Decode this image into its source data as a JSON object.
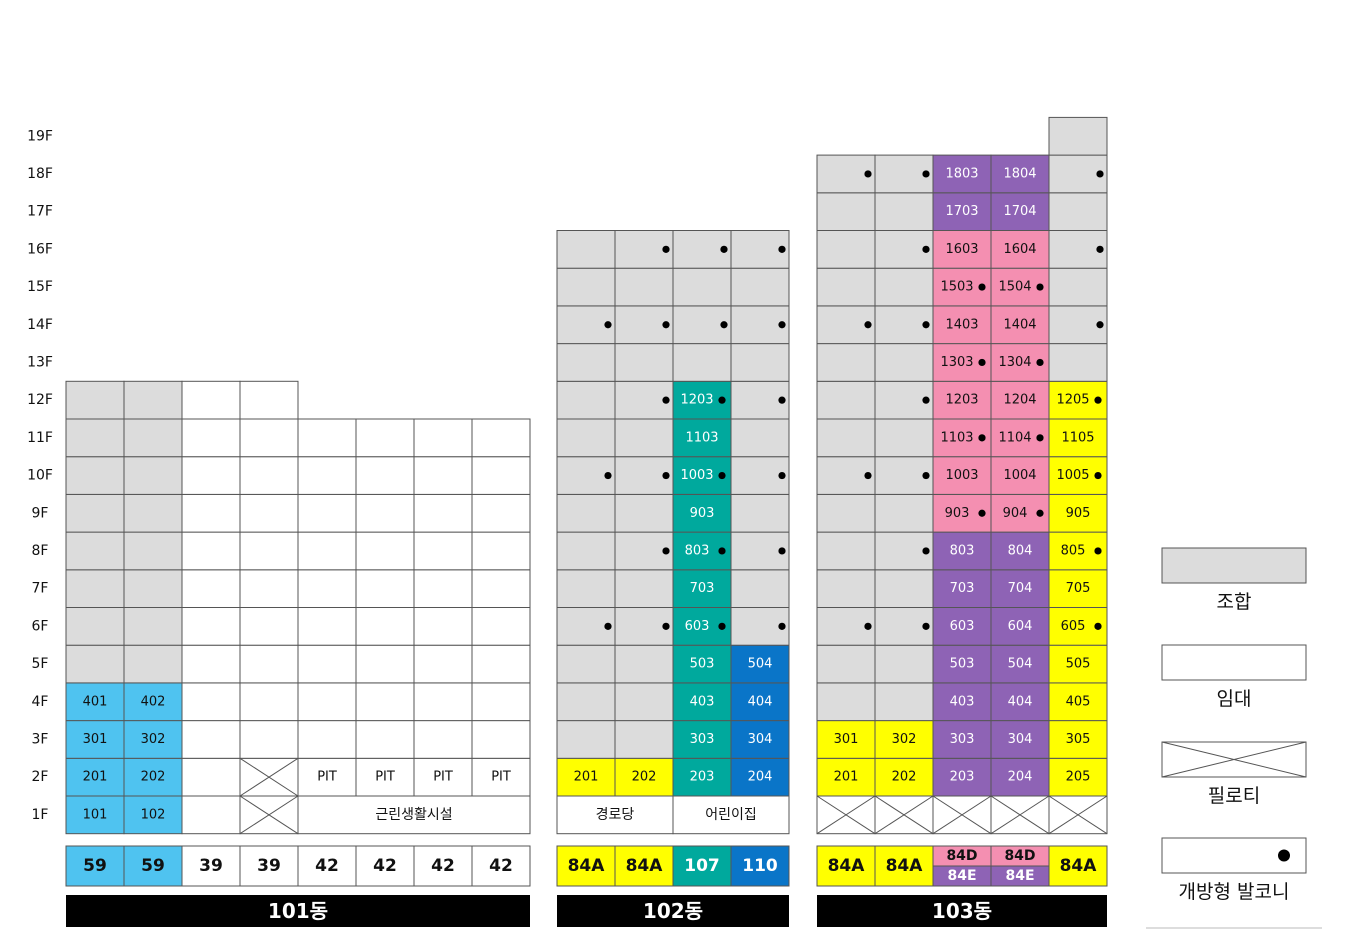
{
  "floors": [
    "1F",
    "2F",
    "3F",
    "4F",
    "5F",
    "6F",
    "7F",
    "8F",
    "9F",
    "10F",
    "11F",
    "12F",
    "13F",
    "14F",
    "15F",
    "16F",
    "17F",
    "18F",
    "19F"
  ],
  "colors": {
    "조합": "#dcdcdc",
    "임대": "#ffffff",
    "blue_light": "#4fc3f0",
    "yellow": "#ffff00",
    "teal": "#00a99d",
    "blue": "#0a75c8",
    "pink": "#f48fb1",
    "purple": "#8e63b5",
    "label_bg": "#000000",
    "grid_line": "#555555"
  },
  "buildings": [
    {
      "name": "101동",
      "type_row": [
        {
          "label": "59",
          "color": "blue_light"
        },
        {
          "label": "59",
          "color": "blue_light"
        },
        {
          "label": "39",
          "color": "임대"
        },
        {
          "label": "39",
          "color": "임대"
        },
        {
          "label": "42",
          "color": "임대"
        },
        {
          "label": "42",
          "color": "임대"
        },
        {
          "label": "42",
          "color": "임대"
        },
        {
          "label": "42",
          "color": "임대"
        }
      ],
      "merged": [
        {
          "floor": 1,
          "col": 4,
          "span": 4,
          "label": "근린생활시설"
        }
      ],
      "columns": [
        {
          "top": 12,
          "cells": {
            "1": {
              "c": "blue_light",
              "t": "101"
            },
            "2": {
              "c": "blue_light",
              "t": "201"
            },
            "3": {
              "c": "blue_light",
              "t": "301"
            },
            "4": {
              "c": "blue_light",
              "t": "401"
            },
            "5": {
              "c": "조합"
            },
            "6": {
              "c": "조합"
            },
            "7": {
              "c": "조합"
            },
            "8": {
              "c": "조합"
            },
            "9": {
              "c": "조합"
            },
            "10": {
              "c": "조합"
            },
            "11": {
              "c": "조합"
            },
            "12": {
              "c": "조합"
            }
          }
        },
        {
          "top": 12,
          "cells": {
            "1": {
              "c": "blue_light",
              "t": "102"
            },
            "2": {
              "c": "blue_light",
              "t": "202"
            },
            "3": {
              "c": "blue_light",
              "t": "302"
            },
            "4": {
              "c": "blue_light",
              "t": "402"
            },
            "5": {
              "c": "조합"
            },
            "6": {
              "c": "조합"
            },
            "7": {
              "c": "조합"
            },
            "8": {
              "c": "조합"
            },
            "9": {
              "c": "조합"
            },
            "10": {
              "c": "조합"
            },
            "11": {
              "c": "조합"
            },
            "12": {
              "c": "조합"
            }
          }
        },
        {
          "top": 12,
          "cells": {}
        },
        {
          "top": 12,
          "cells": {
            "1": {
              "c": "pilotis"
            },
            "2": {
              "c": "pilotis"
            }
          }
        },
        {
          "top": 11,
          "cells": {
            "2": {
              "c": "임대",
              "t": "PIT"
            }
          }
        },
        {
          "top": 11,
          "cells": {
            "2": {
              "c": "임대",
              "t": "PIT"
            }
          }
        },
        {
          "top": 11,
          "cells": {
            "2": {
              "c": "임대",
              "t": "PIT"
            }
          }
        },
        {
          "top": 11,
          "cells": {
            "2": {
              "c": "임대",
              "t": "PIT"
            }
          }
        }
      ]
    },
    {
      "name": "102동",
      "type_row": [
        {
          "label": "84A",
          "color": "yellow"
        },
        {
          "label": "84A",
          "color": "yellow"
        },
        {
          "label": "107",
          "color": "teal"
        },
        {
          "label": "110",
          "color": "blue"
        }
      ],
      "merged": [
        {
          "floor": 1,
          "col": 0,
          "span": 2,
          "label": "경로당"
        },
        {
          "floor": 1,
          "col": 2,
          "span": 2,
          "label": "어린이집"
        }
      ],
      "columns": [
        {
          "top": 16,
          "cells": {
            "2": {
              "c": "yellow",
              "t": "201"
            },
            "3": {
              "c": "조합"
            },
            "4": {
              "c": "조합"
            },
            "5": {
              "c": "조합"
            },
            "6": {
              "c": "조합"
            },
            "7": {
              "c": "조합"
            },
            "8": {
              "c": "조합"
            },
            "9": {
              "c": "조합"
            },
            "10": {
              "c": "조합"
            },
            "11": {
              "c": "조합"
            },
            "12": {
              "c": "조합"
            },
            "13": {
              "c": "조합"
            },
            "14": {
              "c": "조합"
            },
            "15": {
              "c": "조합"
            },
            "16": {
              "c": "조합"
            }
          }
        },
        {
          "top": 16,
          "cells": {
            "2": {
              "c": "yellow",
              "t": "202"
            },
            "3": {
              "c": "조합"
            },
            "4": {
              "c": "조합"
            },
            "5": {
              "c": "조합"
            },
            "6": {
              "c": "조합",
              "d": 1
            },
            "7": {
              "c": "조합"
            },
            "8": {
              "c": "조합"
            },
            "9": {
              "c": "조합"
            },
            "10": {
              "c": "조합",
              "d": 1
            },
            "11": {
              "c": "조합"
            },
            "12": {
              "c": "조합"
            },
            "13": {
              "c": "조합"
            },
            "14": {
              "c": "조합",
              "d": 1
            },
            "15": {
              "c": "조합"
            },
            "16": {
              "c": "조합"
            }
          }
        },
        {
          "top": 16,
          "cells": {
            "2": {
              "c": "teal",
              "t": "203"
            },
            "3": {
              "c": "teal",
              "t": "303"
            },
            "4": {
              "c": "teal",
              "t": "403"
            },
            "5": {
              "c": "teal",
              "t": "503"
            },
            "6": {
              "c": "teal",
              "t": "603"
            },
            "7": {
              "c": "teal",
              "t": "703"
            },
            "8": {
              "c": "teal",
              "t": "803"
            },
            "9": {
              "c": "teal",
              "t": "903"
            },
            "10": {
              "c": "teal",
              "t": "1003"
            },
            "11": {
              "c": "teal",
              "t": "1103"
            },
            "12": {
              "c": "teal",
              "t": "1203"
            },
            "13": {
              "c": "조합"
            },
            "14": {
              "c": "조합"
            },
            "15": {
              "c": "조합"
            },
            "16": {
              "c": "조합"
            }
          }
        },
        {
          "top": 16,
          "cells": {
            "2": {
              "c": "blue",
              "t": "204"
            },
            "3": {
              "c": "blue",
              "t": "304"
            },
            "4": {
              "c": "blue",
              "t": "404"
            },
            "5": {
              "c": "blue",
              "t": "504"
            },
            "6": {
              "c": "조합"
            },
            "7": {
              "c": "조합"
            },
            "8": {
              "c": "조합"
            },
            "9": {
              "c": "조합"
            },
            "10": {
              "c": "조합"
            },
            "11": {
              "c": "조합"
            },
            "12": {
              "c": "조합"
            },
            "13": {
              "c": "조합"
            },
            "14": {
              "c": "조합"
            },
            "15": {
              "c": "조합"
            },
            "16": {
              "c": "조합"
            }
          }
        }
      ]
    },
    {
      "name": "103동",
      "type_row": [
        {
          "label": "84A",
          "color": "yellow"
        },
        {
          "label": "84A",
          "color": "yellow"
        },
        {
          "label": "84D",
          "label2": "84E",
          "color": "pink",
          "color2": "purple"
        },
        {
          "label": "84D",
          "label2": "84E",
          "color": "pink",
          "color2": "purple"
        },
        {
          "label": "84A",
          "color": "yellow"
        }
      ],
      "merged": [],
      "columns": [
        {
          "top": 18,
          "cells": {
            "1": {
              "c": "pilotis"
            },
            "2": {
              "c": "yellow",
              "t": "201"
            },
            "3": {
              "c": "yellow",
              "t": "301"
            },
            "4": {
              "c": "조합"
            },
            "5": {
              "c": "조합"
            },
            "6": {
              "c": "조합"
            },
            "7": {
              "c": "조합"
            },
            "8": {
              "c": "조합"
            },
            "9": {
              "c": "조합"
            },
            "10": {
              "c": "조합"
            },
            "11": {
              "c": "조합"
            },
            "12": {
              "c": "조합"
            },
            "13": {
              "c": "조합"
            },
            "14": {
              "c": "조합"
            },
            "15": {
              "c": "조합"
            },
            "16": {
              "c": "조합"
            },
            "17": {
              "c": "조합"
            },
            "18": {
              "c": "조합"
            }
          }
        },
        {
          "top": 18,
          "cells": {
            "1": {
              "c": "pilotis"
            },
            "2": {
              "c": "yellow",
              "t": "202"
            },
            "3": {
              "c": "yellow",
              "t": "302"
            },
            "4": {
              "c": "조합"
            },
            "5": {
              "c": "조합"
            },
            "6": {
              "c": "조합",
              "d": 1
            },
            "7": {
              "c": "조합"
            },
            "8": {
              "c": "조합"
            },
            "9": {
              "c": "조합"
            },
            "10": {
              "c": "조합",
              "d": 1
            },
            "11": {
              "c": "조합"
            },
            "12": {
              "c": "조합"
            },
            "13": {
              "c": "조합"
            },
            "14": {
              "c": "조합",
              "d": 1
            },
            "15": {
              "c": "조합"
            },
            "16": {
              "c": "조합"
            },
            "17": {
              "c": "조합"
            },
            "18": {
              "c": "조합",
              "d": 1
            }
          }
        },
        {
          "top": 18,
          "cells": {
            "1": {
              "c": "pilotis"
            },
            "2": {
              "c": "purple",
              "t": "203"
            },
            "3": {
              "c": "purple",
              "t": "303"
            },
            "4": {
              "c": "purple",
              "t": "403"
            },
            "5": {
              "c": "purple",
              "t": "503"
            },
            "6": {
              "c": "purple",
              "t": "603"
            },
            "7": {
              "c": "purple",
              "t": "703"
            },
            "8": {
              "c": "purple",
              "t": "803"
            },
            "9": {
              "c": "pink",
              "t": "903"
            },
            "10": {
              "c": "pink",
              "t": "1003"
            },
            "11": {
              "c": "pink",
              "t": "1103"
            },
            "12": {
              "c": "pink",
              "t": "1203"
            },
            "13": {
              "c": "pink",
              "t": "1303"
            },
            "14": {
              "c": "pink",
              "t": "1403"
            },
            "15": {
              "c": "pink",
              "t": "1503"
            },
            "16": {
              "c": "pink",
              "t": "1603"
            },
            "17": {
              "c": "purple",
              "t": "1703"
            },
            "18": {
              "c": "purple",
              "t": "1803"
            }
          }
        },
        {
          "top": 18,
          "cells": {
            "1": {
              "c": "pilotis"
            },
            "2": {
              "c": "purple",
              "t": "204"
            },
            "3": {
              "c": "purple",
              "t": "304"
            },
            "4": {
              "c": "purple",
              "t": "404"
            },
            "5": {
              "c": "purple",
              "t": "504"
            },
            "6": {
              "c": "purple",
              "t": "604"
            },
            "7": {
              "c": "purple",
              "t": "704"
            },
            "8": {
              "c": "purple",
              "t": "804"
            },
            "9": {
              "c": "pink",
              "t": "904"
            },
            "10": {
              "c": "pink",
              "t": "1004"
            },
            "11": {
              "c": "pink",
              "t": "1104"
            },
            "12": {
              "c": "pink",
              "t": "1204"
            },
            "13": {
              "c": "pink",
              "t": "1304"
            },
            "14": {
              "c": "pink",
              "t": "1404"
            },
            "15": {
              "c": "pink",
              "t": "1504"
            },
            "16": {
              "c": "pink",
              "t": "1604"
            },
            "17": {
              "c": "purple",
              "t": "1704"
            },
            "18": {
              "c": "purple",
              "t": "1804"
            }
          }
        },
        {
          "top": 19,
          "cells": {
            "1": {
              "c": "pilotis"
            },
            "2": {
              "c": "yellow",
              "t": "205"
            },
            "3": {
              "c": "yellow",
              "t": "305"
            },
            "4": {
              "c": "yellow",
              "t": "405"
            },
            "5": {
              "c": "yellow",
              "t": "505"
            },
            "6": {
              "c": "yellow",
              "t": "605"
            },
            "7": {
              "c": "yellow",
              "t": "705"
            },
            "8": {
              "c": "yellow",
              "t": "805"
            },
            "9": {
              "c": "yellow",
              "t": "905"
            },
            "10": {
              "c": "yellow",
              "t": "1005"
            },
            "11": {
              "c": "yellow",
              "t": "1105"
            },
            "12": {
              "c": "yellow",
              "t": "1205"
            },
            "13": {
              "c": "조합"
            },
            "14": {
              "c": "조합"
            },
            "15": {
              "c": "조합"
            },
            "16": {
              "c": "조합"
            },
            "17": {
              "c": "조합"
            },
            "18": {
              "c": "조합"
            },
            "19": {
              "c": "조합"
            }
          }
        }
      ]
    }
  ],
  "balcony_dots": [
    {
      "b": 1,
      "col": 1,
      "floors": [
        16,
        12,
        8
      ]
    },
    {
      "b": 1,
      "col": 0,
      "floors": [
        14,
        10,
        6
      ]
    },
    {
      "b": 1,
      "col": 2,
      "floors": [
        16,
        14,
        12,
        10,
        8,
        6
      ]
    },
    {
      "b": 1,
      "col": 3,
      "floors": [
        16,
        14,
        12,
        10,
        8,
        6
      ]
    },
    {
      "b": 2,
      "col": 0,
      "floors": [
        18,
        14,
        10,
        6
      ]
    },
    {
      "b": 2,
      "col": 1,
      "floors": [
        16,
        12,
        8
      ]
    },
    {
      "b": 2,
      "col": 2,
      "floors": [
        15,
        13,
        11,
        9
      ]
    },
    {
      "b": 2,
      "col": 3,
      "floors": [
        15,
        13,
        11,
        9
      ]
    },
    {
      "b": 2,
      "col": 4,
      "floors": [
        18,
        16,
        14,
        12,
        10,
        8,
        6
      ]
    }
  ],
  "legend": [
    {
      "kind": "fill",
      "color": "조합",
      "label": "조합"
    },
    {
      "kind": "fill",
      "color": "임대",
      "label": "임대"
    },
    {
      "kind": "pilotis",
      "color": "임대",
      "label": "필로티"
    },
    {
      "kind": "dot",
      "color": "임대",
      "label": "개방형 발코니"
    }
  ]
}
